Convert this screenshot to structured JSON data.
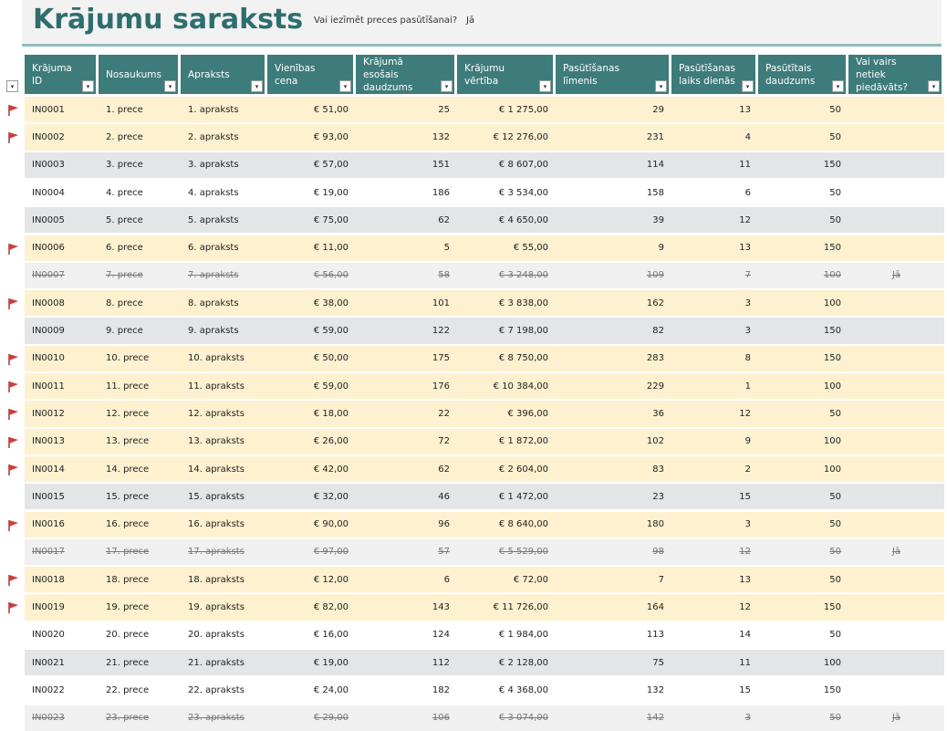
{
  "header": {
    "title": "Krājumu saraksts",
    "question": "Vai iezīmēt preces pasūtīšanai?",
    "answer": "Jā"
  },
  "table": {
    "columns": [
      "Krājuma ID",
      "Nosaukums",
      "Apraksts",
      "Vienības cena",
      "Krājumā esošais daudzums",
      "Krājumu vērtība",
      "Pasūtīšanas līmenis",
      "Pasūtīšanas laiks dienās",
      "Pasūtītais daudzums",
      "Vai vairs netiek piedāvāts?"
    ],
    "rows": [
      [
        "IN0001",
        "1. prece",
        "1. apraksts",
        "€ 51,00",
        25,
        "€ 1 275,00",
        29,
        13,
        50,
        null
      ],
      [
        "IN0002",
        "2. prece",
        "2. apraksts",
        "€ 93,00",
        132,
        "€ 12 276,00",
        231,
        4,
        50,
        null
      ],
      [
        "IN0003",
        "3. prece",
        "3. apraksts",
        "€ 57,00",
        151,
        "€ 8 607,00",
        114,
        11,
        150,
        null
      ],
      [
        "IN0004",
        "4. prece",
        "4. apraksts",
        "€ 19,00",
        186,
        "€ 3 534,00",
        158,
        6,
        50,
        null
      ],
      [
        "IN0005",
        "5. prece",
        "5. apraksts",
        "€ 75,00",
        62,
        "€ 4 650,00",
        39,
        12,
        50,
        null
      ],
      [
        "IN0006",
        "6. prece",
        "6. apraksts",
        "€ 11,00",
        5,
        "€ 55,00",
        9,
        13,
        150,
        null
      ],
      [
        "IN0007",
        "7. prece",
        "7. apraksts",
        "€ 56,00",
        58,
        "€ 3 248,00",
        109,
        7,
        100,
        "Jā"
      ],
      [
        "IN0008",
        "8. prece",
        "8. apraksts",
        "€ 38,00",
        101,
        "€ 3 838,00",
        162,
        3,
        100,
        null
      ],
      [
        "IN0009",
        "9. prece",
        "9. apraksts",
        "€ 59,00",
        122,
        "€ 7 198,00",
        82,
        3,
        150,
        null
      ],
      [
        "IN0010",
        "10. prece",
        "10. apraksts",
        "€ 50,00",
        175,
        "€ 8 750,00",
        283,
        8,
        150,
        null
      ],
      [
        "IN0011",
        "11. prece",
        "11. apraksts",
        "€ 59,00",
        176,
        "€ 10 384,00",
        229,
        1,
        100,
        null
      ],
      [
        "IN0012",
        "12. prece",
        "12. apraksts",
        "€ 18,00",
        22,
        "€ 396,00",
        36,
        12,
        50,
        null
      ],
      [
        "IN0013",
        "13. prece",
        "13. apraksts",
        "€ 26,00",
        72,
        "€ 1 872,00",
        102,
        9,
        100,
        null
      ],
      [
        "IN0014",
        "14. prece",
        "14. apraksts",
        "€ 42,00",
        62,
        "€ 2 604,00",
        83,
        2,
        100,
        null
      ],
      [
        "IN0015",
        "15. prece",
        "15. apraksts",
        "€ 32,00",
        46,
        "€ 1 472,00",
        23,
        15,
        50,
        null
      ],
      [
        "IN0016",
        "16. prece",
        "16. apraksts",
        "€ 90,00",
        96,
        "€ 8 640,00",
        180,
        3,
        50,
        null
      ],
      [
        "IN0017",
        "17. prece",
        "17. apraksts",
        "€ 97,00",
        57,
        "€ 5 529,00",
        98,
        12,
        50,
        "Jā"
      ],
      [
        "IN0018",
        "18. prece",
        "18. apraksts",
        "€ 12,00",
        6,
        "€ 72,00",
        7,
        13,
        50,
        null
      ],
      [
        "IN0019",
        "19. prece",
        "19. apraksts",
        "€ 82,00",
        143,
        "€ 11 726,00",
        164,
        12,
        150,
        null
      ],
      [
        "IN0020",
        "20. prece",
        "20. apraksts",
        "€ 16,00",
        124,
        "€ 1 984,00",
        113,
        14,
        50,
        null
      ],
      [
        "IN0021",
        "21. prece",
        "21. apraksts",
        "€ 19,00",
        112,
        "€ 2 128,00",
        75,
        11,
        100,
        null
      ],
      [
        "IN0022",
        "22. prece",
        "22. apraksts",
        "€ 24,00",
        182,
        "€ 4 368,00",
        132,
        15,
        150,
        null
      ],
      [
        "IN0023",
        "23. prece",
        "23. apraksts",
        "€ 29,00",
        106,
        "€ 3 074,00",
        142,
        3,
        50,
        "Jā"
      ]
    ]
  }
}
